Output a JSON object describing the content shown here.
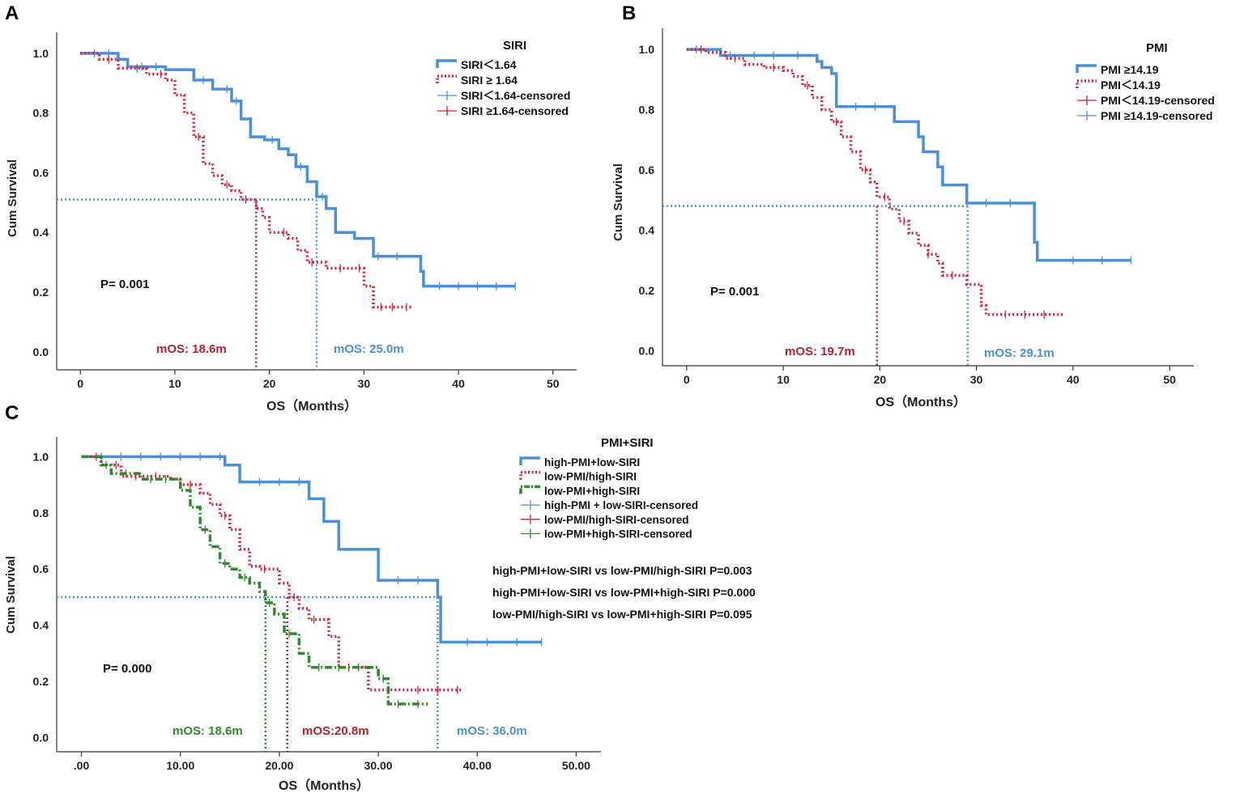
{
  "chart_data": [
    {
      "panel_label": "A",
      "type": "line",
      "subtype": "kaplan-meier",
      "xlabel": "OS（Months）",
      "ylabel": "Cum Survival",
      "xlim": [
        -2.5,
        52.5
      ],
      "ylim": [
        -0.06,
        1.07
      ],
      "xticks": [
        0,
        10,
        20,
        30,
        40,
        50
      ],
      "xtick_labels": [
        "0",
        "10",
        "20",
        "30",
        "40",
        "50"
      ],
      "yticks": [
        0.0,
        0.2,
        0.4,
        0.6,
        0.8,
        1.0
      ],
      "ytick_labels": [
        "0.0",
        "0.2",
        "0.4",
        "0.6",
        "0.8",
        "1.0"
      ],
      "legend_title": "SIRI",
      "legend": [
        {
          "label": "SIRI＜1.64",
          "color": "#4a90d9",
          "style": "solid",
          "kind": "line"
        },
        {
          "label": "SIRI ≥ 1.64",
          "color": "#d0223c",
          "style": "dotted",
          "kind": "line"
        },
        {
          "label": "SIRI＜1.64-censored",
          "color": "#4a90d9",
          "style": "solid",
          "kind": "cross"
        },
        {
          "label": "SIRI ≥1.64-censored",
          "color": "#d0223c",
          "style": "solid",
          "kind": "cross"
        }
      ],
      "p_value_text": "P= 0.001",
      "median_line": {
        "y": 0.51,
        "color": "#4a90d9"
      },
      "medians": [
        {
          "text": "mOS: 18.6m",
          "x": 18.6,
          "color": "#b5232f"
        },
        {
          "text": "mOS: 25.0m",
          "x": 25.0,
          "color": "#4a90d9"
        }
      ],
      "series": [
        {
          "name": "SIRI＜1.64",
          "color": "#4a90d9",
          "dash": "",
          "width": 3.5,
          "x": [
            0,
            4,
            5,
            9,
            12,
            14,
            16,
            17,
            18,
            19.5,
            21,
            22,
            22.8,
            24,
            25,
            26,
            27,
            29,
            31,
            36,
            36.3,
            46
          ],
          "y": [
            1.0,
            0.98,
            0.955,
            0.945,
            0.91,
            0.88,
            0.84,
            0.78,
            0.72,
            0.71,
            0.68,
            0.66,
            0.62,
            0.57,
            0.52,
            0.48,
            0.4,
            0.38,
            0.32,
            0.27,
            0.22,
            0.22
          ],
          "censor_x": [
            1.5,
            3,
            6.5,
            8,
            13,
            15.5,
            16.5,
            20.3,
            23.3,
            25.6,
            31.5,
            33.5,
            38,
            40,
            42,
            44,
            46
          ]
        },
        {
          "name": "SIRI ≥ 1.64",
          "color": "#d0223c",
          "dash": "2 3",
          "width": 3.5,
          "x": [
            0,
            2,
            4,
            7,
            9,
            10,
            11,
            12,
            13,
            14,
            15,
            16,
            17,
            18.6,
            19.3,
            20,
            22,
            23,
            24,
            26,
            30,
            31,
            35
          ],
          "y": [
            1.0,
            0.98,
            0.95,
            0.93,
            0.91,
            0.86,
            0.8,
            0.72,
            0.63,
            0.59,
            0.56,
            0.54,
            0.51,
            0.48,
            0.45,
            0.4,
            0.38,
            0.34,
            0.3,
            0.28,
            0.22,
            0.15,
            0.15
          ],
          "censor_x": [
            3,
            6,
            8.5,
            12.5,
            15.5,
            17.5,
            21.5,
            24.5,
            27.5,
            29.5,
            31.8,
            33,
            34.5
          ]
        }
      ]
    },
    {
      "panel_label": "B",
      "type": "line",
      "subtype": "kaplan-meier",
      "xlabel": "OS（Months）",
      "ylabel": "Cum Survival",
      "xlim": [
        -2.5,
        52.5
      ],
      "ylim": [
        -0.05,
        1.07
      ],
      "xticks": [
        0,
        10,
        20,
        30,
        40,
        50
      ],
      "xtick_labels": [
        "0",
        "10",
        "20",
        "30",
        "40",
        "50"
      ],
      "yticks": [
        0.0,
        0.2,
        0.4,
        0.6,
        0.8,
        1.0
      ],
      "ytick_labels": [
        "0.0",
        "0.2",
        "0.4",
        "0.6",
        "0.8",
        "1.0"
      ],
      "legend_title": "PMI",
      "legend": [
        {
          "label": "PMI ≥14.19",
          "color": "#4a90d9",
          "style": "solid",
          "kind": "line"
        },
        {
          "label": "PMI＜14.19",
          "color": "#d0223c",
          "style": "dotted",
          "kind": "line"
        },
        {
          "label": "PMI＜14.19-censored",
          "color": "#d0223c",
          "style": "solid",
          "kind": "cross"
        },
        {
          "label": "PMI ≥14.19-censored",
          "color": "#4a90d9",
          "style": "solid",
          "kind": "cross"
        }
      ],
      "p_value_text": "P= 0.001",
      "median_line": {
        "y": 0.48,
        "color": "#4a90d9"
      },
      "medians": [
        {
          "text": "mOS: 19.7m",
          "x": 19.7,
          "color": "#b5232f"
        },
        {
          "text": "mOS: 29.1m",
          "x": 29.1,
          "color": "#4a90d9"
        }
      ],
      "series": [
        {
          "name": "PMI ≥14.19",
          "color": "#4a90d9",
          "dash": "",
          "width": 3.5,
          "x": [
            0,
            3.5,
            13.5,
            14,
            15,
            15.5,
            21.5,
            24,
            24.5,
            26,
            26.5,
            29,
            36,
            36.3,
            46
          ],
          "y": [
            1.0,
            0.98,
            0.96,
            0.94,
            0.92,
            0.81,
            0.76,
            0.71,
            0.66,
            0.61,
            0.55,
            0.49,
            0.36,
            0.3,
            0.3
          ],
          "censor_x": [
            1,
            4.5,
            7,
            9,
            11.5,
            17.5,
            19.5,
            31,
            33.5,
            40,
            43,
            46
          ]
        },
        {
          "name": "PMI＜14.19",
          "color": "#d0223c",
          "dash": "2 3",
          "width": 3.5,
          "x": [
            0,
            2,
            4,
            6,
            8,
            10,
            11,
            12,
            13,
            14,
            15,
            16,
            17,
            18,
            19,
            19.7,
            21,
            22,
            23,
            24,
            25,
            26,
            26.5,
            29,
            30.5,
            31,
            39
          ],
          "y": [
            1.0,
            0.99,
            0.97,
            0.95,
            0.94,
            0.93,
            0.91,
            0.88,
            0.84,
            0.8,
            0.76,
            0.71,
            0.66,
            0.6,
            0.56,
            0.51,
            0.47,
            0.43,
            0.39,
            0.35,
            0.32,
            0.29,
            0.25,
            0.22,
            0.15,
            0.12,
            0.12
          ],
          "censor_x": [
            1.5,
            5,
            9,
            12.5,
            15.5,
            18.5,
            20.5,
            22.5,
            25,
            27.5,
            33,
            35,
            37
          ]
        }
      ]
    },
    {
      "panel_label": "C",
      "type": "line",
      "subtype": "kaplan-meier",
      "xlabel": "OS（Months）",
      "ylabel": "Cum Survival",
      "xlim": [
        -2.5,
        52.5
      ],
      "ylim": [
        -0.05,
        1.07
      ],
      "xticks": [
        0,
        10,
        20,
        30,
        40,
        50
      ],
      "xtick_labels": [
        ".00",
        "10.00",
        "20.00",
        "30.00",
        "40.00",
        "50.00"
      ],
      "yticks": [
        0.0,
        0.2,
        0.4,
        0.6,
        0.8,
        1.0
      ],
      "ytick_labels": [
        "0.0",
        "0.2",
        "0.4",
        "0.6",
        "0.8",
        "1.0"
      ],
      "legend_title": "PMI+SIRI",
      "legend": [
        {
          "label": "high-PMI+low-SIRI",
          "color": "#4a90d9",
          "style": "solid",
          "kind": "line"
        },
        {
          "label": "low-PMI/high-SIRI",
          "color": "#d0223c",
          "style": "dotted",
          "kind": "line"
        },
        {
          "label": "low-PMI+high-SIRI",
          "color": "#2f8a2f",
          "style": "dashdot",
          "kind": "line"
        },
        {
          "label": "high-PMI + low-SIRI-censored",
          "color": "#4a90d9",
          "style": "solid",
          "kind": "cross"
        },
        {
          "label": "low-PMI/high-SIRI-censored",
          "color": "#d0223c",
          "style": "solid",
          "kind": "cross"
        },
        {
          "label": "low-PMI+high-SIRI-censored",
          "color": "#2f8a2f",
          "style": "solid",
          "kind": "cross"
        }
      ],
      "comparisons": [
        "high-PMI+low-SIRI vs low-PMI/high-SIRI  P=0.003",
        "high-PMI+low-SIRI vs low-PMI+high-SIRI  P=0.000",
        "low-PMI/high-SIRI vs low-PMI+high-SIRI  P=0.095"
      ],
      "p_value_text": "P= 0.000",
      "median_line": {
        "y": 0.5,
        "color": "#4a90d9"
      },
      "medians": [
        {
          "text": "mOS: 18.6m",
          "x": 18.6,
          "color": "#2f8a2f"
        },
        {
          "text": "mOS:20.8m",
          "x": 20.8,
          "color": "#b5232f"
        },
        {
          "text": "mOS: 36.0m",
          "x": 36.0,
          "color": "#4a90d9"
        }
      ],
      "series": [
        {
          "name": "high-PMI+low-SIRI",
          "color": "#4a90d9",
          "dash": "",
          "width": 3.5,
          "x": [
            0,
            14.5,
            16,
            23,
            24.5,
            26,
            30,
            36,
            36.3,
            46.5
          ],
          "y": [
            1.0,
            0.97,
            0.91,
            0.85,
            0.77,
            0.67,
            0.56,
            0.5,
            0.34,
            0.34
          ],
          "censor_x": [
            2,
            4,
            6,
            8,
            10,
            12,
            14,
            18,
            20,
            22,
            32,
            34,
            39,
            41,
            44,
            46.5
          ]
        },
        {
          "name": "low-PMI/high-SIRI",
          "color": "#d0223c",
          "dash": "2 3",
          "width": 3.5,
          "x": [
            0,
            2,
            4,
            9,
            10,
            12,
            13,
            14,
            15,
            16,
            17,
            18,
            20,
            21,
            22,
            23,
            25,
            26,
            29,
            33,
            38.5
          ],
          "y": [
            1.0,
            0.97,
            0.93,
            0.92,
            0.9,
            0.87,
            0.83,
            0.79,
            0.74,
            0.67,
            0.61,
            0.6,
            0.55,
            0.5,
            0.46,
            0.42,
            0.36,
            0.25,
            0.17,
            0.17,
            0.17
          ],
          "censor_x": [
            1.5,
            3.5,
            5.5,
            7.5,
            11,
            14.5,
            18.5,
            21.5,
            23.5,
            27,
            31,
            34,
            36,
            38
          ]
        },
        {
          "name": "low-PMI+high-SIRI",
          "color": "#2f8a2f",
          "dash": "9 3 2 3",
          "width": 3.5,
          "x": [
            0,
            2,
            3,
            6,
            10,
            11,
            12,
            13,
            14,
            15,
            16,
            17,
            18,
            18.6,
            19.5,
            20.5,
            22,
            23,
            30,
            31,
            35
          ],
          "y": [
            1.0,
            0.97,
            0.94,
            0.92,
            0.88,
            0.82,
            0.74,
            0.68,
            0.62,
            0.6,
            0.57,
            0.55,
            0.52,
            0.48,
            0.44,
            0.37,
            0.3,
            0.25,
            0.21,
            0.12,
            0.12
          ],
          "censor_x": [
            2.5,
            4.5,
            7,
            8.5,
            12.5,
            14.5,
            16.5,
            19,
            21,
            24,
            26,
            28,
            30.5,
            32,
            34
          ]
        }
      ]
    }
  ]
}
